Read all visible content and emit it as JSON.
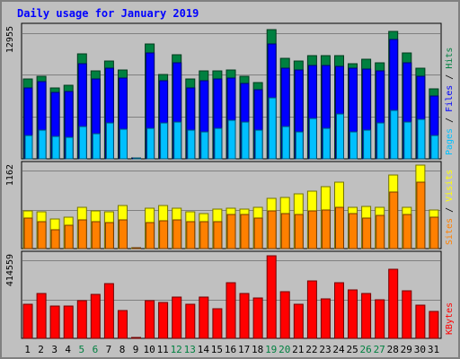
{
  "colors": {
    "background": "#c0c0c0",
    "panel": "#c0c0c0",
    "hits": "#008040",
    "files": "#0000ff",
    "pages": "#00c0ff",
    "visits": "#ffff00",
    "sites": "#ff8000",
    "kbytes": "#ff0000",
    "title": "#0000ff",
    "weekend_label": "#008040"
  },
  "chart_data": {
    "type": "bar",
    "title": "Daily usage for January 2019",
    "x": [
      "1",
      "2",
      "3",
      "4",
      "5",
      "6",
      "7",
      "8",
      "9",
      "10",
      "11",
      "12",
      "13",
      "14",
      "15",
      "16",
      "17",
      "18",
      "19",
      "20",
      "21",
      "22",
      "23",
      "24",
      "25",
      "26",
      "27",
      "28",
      "29",
      "30",
      "31"
    ],
    "weekend_days": [
      "5",
      "6",
      "12",
      "13",
      "19",
      "20",
      "26",
      "27"
    ],
    "panels": [
      {
        "name": "top",
        "ylabel_parts": [
          "Pages",
          "Files",
          "Hits"
        ],
        "ymax_label": "12955",
        "ylim": [
          0,
          12955
        ],
        "series": [
          {
            "name": "Hits",
            "values": [
              7800,
              8100,
              7000,
              7200,
              10300,
              8600,
              9600,
              8700,
              0,
              11300,
              8300,
              10200,
              7800,
              8600,
              8600,
              8700,
              8100,
              7500,
              12700,
              9900,
              9600,
              10100,
              10100,
              10100,
              9300,
              9800,
              9400,
              12500,
              10400,
              8900,
              6900
            ]
          },
          {
            "name": "Files",
            "values": [
              7000,
              7600,
              6500,
              6600,
              9300,
              7800,
              8900,
              7900,
              0,
              10400,
              7700,
              9400,
              7000,
              7700,
              7800,
              7900,
              7400,
              6800,
              11300,
              8900,
              8700,
              9200,
              9200,
              9100,
              8900,
              8800,
              8600,
              11700,
              9400,
              8100,
              6200
            ]
          },
          {
            "name": "Pages",
            "values": [
              2300,
              2800,
              2200,
              2100,
              3200,
              2500,
              3500,
              2900,
              0,
              3000,
              3500,
              3600,
              2800,
              2600,
              3000,
              3800,
              3600,
              2800,
              6000,
              3200,
              2600,
              4000,
              3000,
              4400,
              2600,
              2800,
              3500,
              4800,
              3600,
              3900,
              2300
            ]
          }
        ]
      },
      {
        "name": "middle",
        "ylabel_parts": [
          "Sites",
          "Visits"
        ],
        "ymax_label": "1162",
        "ylim": [
          0,
          1162
        ],
        "series": [
          {
            "name": "Visits",
            "values": [
              520,
              510,
              410,
              440,
              580,
              530,
              510,
              600,
              0,
              560,
              600,
              560,
              510,
              490,
              550,
              560,
              550,
              580,
              700,
              710,
              760,
              800,
              860,
              930,
              580,
              590,
              580,
              1030,
              580,
              1160,
              540
            ]
          },
          {
            "name": "Sites",
            "values": [
              430,
              380,
              260,
              330,
              400,
              380,
              360,
              400,
              0,
              360,
              390,
              400,
              380,
              370,
              370,
              470,
              470,
              420,
              520,
              490,
              470,
              520,
              540,
              580,
              490,
              420,
              460,
              790,
              470,
              920,
              440
            ]
          }
        ]
      },
      {
        "name": "bottom",
        "ylabel_parts": [
          "KBytes"
        ],
        "ymax_label": "414559",
        "ylim": [
          0,
          414559
        ],
        "series": [
          {
            "name": "KBytes",
            "values": [
              170000,
              225000,
              160000,
              160000,
              185000,
              220000,
              270000,
              140000,
              0,
              185000,
              180000,
              205000,
              170000,
              205000,
              145000,
              275000,
              225000,
              200000,
              410000,
              230000,
              170000,
              285000,
              195000,
              275000,
              240000,
              225000,
              190000,
              345000,
              235000,
              165000,
              135000
            ]
          }
        ]
      }
    ]
  }
}
